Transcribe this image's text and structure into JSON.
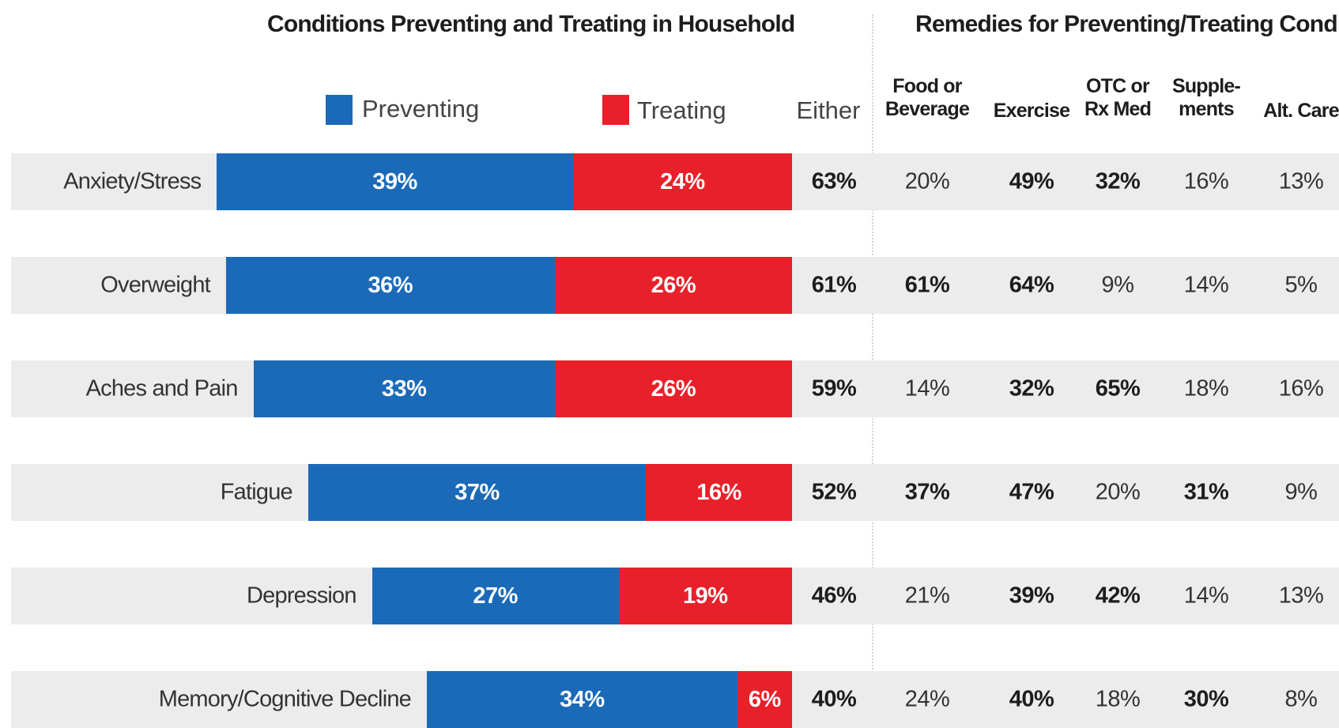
{
  "chart_data": {
    "type": "bar",
    "stacked": true,
    "orientation": "horizontal",
    "title": "Conditions Preventing and Treating in Household",
    "legend": [
      "Preventing",
      "Treating"
    ],
    "categories": [
      "Anxiety/Stress",
      "Overweight",
      "Aches and Pain",
      "Fatigue",
      "Depression",
      "Memory/Cognitive Decline"
    ],
    "series": [
      {
        "name": "Preventing",
        "color": "#1b6ab8",
        "values": [
          39,
          36,
          33,
          37,
          27,
          34
        ],
        "labels": [
          "39%",
          "36%",
          "33%",
          "37%",
          "27%",
          "34%"
        ]
      },
      {
        "name": "Treating",
        "color": "#e8202a",
        "values": [
          24,
          26,
          26,
          16,
          19,
          6
        ],
        "labels": [
          "24%",
          "26%",
          "26%",
          "16%",
          "19%",
          "6%"
        ]
      }
    ],
    "either": {
      "header": "Either",
      "values": [
        "63%",
        "61%",
        "59%",
        "52%",
        "46%",
        "40%"
      ]
    },
    "remedies_table": {
      "title": "Remedies for Preventing/Treating Conditions",
      "columns": [
        {
          "lines": [
            "Food or",
            "Beverage"
          ]
        },
        {
          "lines": [
            "Exercise"
          ]
        },
        {
          "lines": [
            "OTC or",
            "Rx Med"
          ]
        },
        {
          "lines": [
            "Supple-",
            "ments"
          ]
        },
        {
          "lines": [
            "Alt. Care"
          ]
        }
      ],
      "rows": [
        [
          "20%",
          "49%",
          "32%",
          "16%",
          "13%"
        ],
        [
          "61%",
          "64%",
          "9%",
          "14%",
          "5%"
        ],
        [
          "14%",
          "32%",
          "65%",
          "18%",
          "16%"
        ],
        [
          "37%",
          "47%",
          "20%",
          "31%",
          "9%"
        ],
        [
          "21%",
          "39%",
          "42%",
          "14%",
          "13%"
        ],
        [
          "24%",
          "40%",
          "18%",
          "30%",
          "8%"
        ]
      ],
      "bold": [
        [
          false,
          true,
          true,
          false,
          false
        ],
        [
          true,
          true,
          false,
          false,
          false
        ],
        [
          false,
          true,
          true,
          false,
          false
        ],
        [
          true,
          true,
          false,
          true,
          false
        ],
        [
          false,
          true,
          true,
          false,
          false
        ],
        [
          false,
          true,
          false,
          true,
          false
        ]
      ]
    }
  }
}
